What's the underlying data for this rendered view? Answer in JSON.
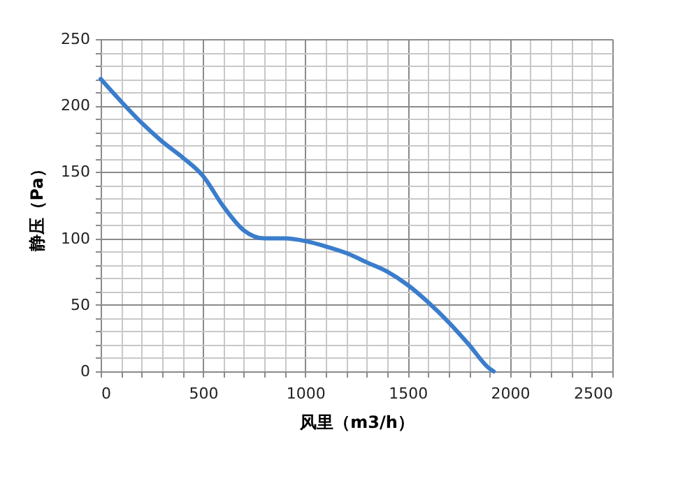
{
  "chart_data": {
    "type": "line",
    "xlabel": "风里（m3/h）",
    "ylabel": "静压（Pa）",
    "x": [
      0,
      100,
      200,
      300,
      400,
      500,
      600,
      700,
      800,
      900,
      1000,
      1100,
      1200,
      1300,
      1400,
      1500,
      1600,
      1700,
      1800,
      1900,
      1920
    ],
    "series": [
      {
        "color": "#3a7dcc",
        "values": [
          220,
          203,
          187,
          173,
          161,
          147,
          124,
          106,
          100,
          100,
          98,
          94,
          89,
          82,
          75,
          65,
          52,
          37,
          20,
          2,
          0
        ]
      }
    ],
    "xlim": [
      0,
      2500
    ],
    "xticks": [
      0,
      {
        "value": 100,
        "label": null
      },
      {
        "value": 200,
        "label": null
      },
      {
        "value": 300,
        "label": null
      },
      {
        "value": 400,
        "label": null
      },
      500,
      {
        "value": 600,
        "label": null
      },
      {
        "value": 700,
        "label": null
      },
      {
        "value": 800,
        "label": null
      },
      {
        "value": 900,
        "label": null
      },
      1000,
      {
        "value": 1100,
        "label": null
      },
      {
        "value": 1200,
        "label": null
      },
      {
        "value": 1300,
        "label": null
      },
      {
        "value": 1400,
        "label": null
      },
      1500,
      {
        "value": 1600,
        "label": null
      },
      {
        "value": 1700,
        "label": null
      },
      {
        "value": 1800,
        "label": null
      },
      {
        "value": 1900,
        "label": null
      },
      2000,
      {
        "value": 2100,
        "label": null
      },
      {
        "value": 2200,
        "label": null
      },
      {
        "value": 2300,
        "label": null
      },
      {
        "value": 2400,
        "label": null
      },
      2500
    ],
    "ylim": [
      0,
      250
    ],
    "yticks": [
      0,
      {
        "value": 10,
        "label": null
      },
      {
        "value": 20,
        "label": null
      },
      {
        "value": 30,
        "label": null
      },
      {
        "value": 40,
        "label": null
      },
      50,
      {
        "value": 60,
        "label": null
      },
      {
        "value": 70,
        "label": null
      },
      {
        "value": 80,
        "label": null
      },
      {
        "value": 90,
        "label": null
      },
      100,
      {
        "value": 110,
        "label": null
      },
      {
        "value": 120,
        "label": null
      },
      {
        "value": 130,
        "label": null
      },
      {
        "value": 140,
        "label": null
      },
      150,
      {
        "value": 160,
        "label": null
      },
      {
        "value": 170,
        "label": null
      },
      {
        "value": 180,
        "label": null
      },
      {
        "value": 190,
        "label": null
      },
      200,
      {
        "value": 210,
        "label": null
      },
      {
        "value": 220,
        "label": null
      },
      {
        "value": 230,
        "label": null
      },
      {
        "value": 240,
        "label": null
      },
      250
    ],
    "grid": true,
    "marker": "none",
    "line_style": "solid"
  }
}
